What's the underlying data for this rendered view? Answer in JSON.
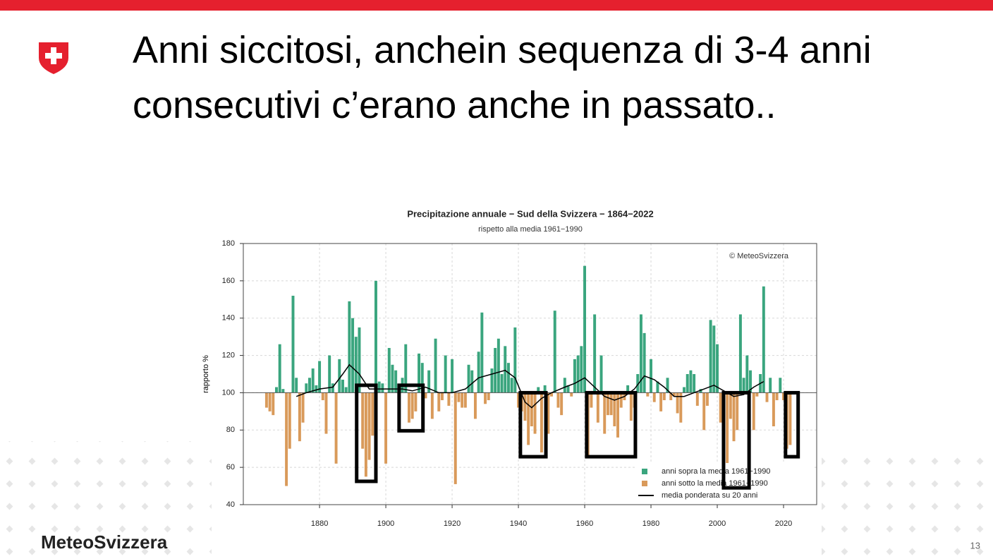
{
  "slide": {
    "title": "Anni siccitosi, anchein sequenza di 3-4 anni consecutivi c’erano anche in passato..",
    "brand": "MeteoSvizzera",
    "page_number": "13"
  },
  "chart_data": {
    "type": "bar",
    "title": "Precipitazione annuale − Sud della Svizzera − 1864−2022",
    "subtitle": "rispetto alla media 1961−1990",
    "ylabel": "rapporto %",
    "annotation": "© MeteoSvizzera",
    "xlim": [
      1857,
      2030
    ],
    "xticks": [
      1880,
      1900,
      1920,
      1940,
      1960,
      1980,
      2000,
      2020
    ],
    "ylim": [
      40,
      180
    ],
    "yticks": [
      40,
      60,
      80,
      100,
      120,
      140,
      160,
      180
    ],
    "grid": true,
    "baseline": 100,
    "legend_position": "lower right",
    "legend": [
      {
        "name": "anni sopra la media 1961−1990",
        "color": "#3aa57e"
      },
      {
        "name": "anni sotto la media 1961−1990",
        "color": "#d99a5a"
      }
    ],
    "x": [
      1864,
      1865,
      1866,
      1867,
      1868,
      1869,
      1870,
      1871,
      1872,
      1873,
      1874,
      1875,
      1876,
      1877,
      1878,
      1879,
      1880,
      1881,
      1882,
      1883,
      1884,
      1885,
      1886,
      1887,
      1888,
      1889,
      1890,
      1891,
      1892,
      1893,
      1894,
      1895,
      1896,
      1897,
      1898,
      1899,
      1900,
      1901,
      1902,
      1903,
      1904,
      1905,
      1906,
      1907,
      1908,
      1909,
      1910,
      1911,
      1912,
      1913,
      1914,
      1915,
      1916,
      1917,
      1918,
      1919,
      1920,
      1921,
      1922,
      1923,
      1924,
      1925,
      1926,
      1927,
      1928,
      1929,
      1930,
      1931,
      1932,
      1933,
      1934,
      1935,
      1936,
      1937,
      1938,
      1939,
      1940,
      1941,
      1942,
      1943,
      1944,
      1945,
      1946,
      1947,
      1948,
      1949,
      1950,
      1951,
      1952,
      1953,
      1954,
      1955,
      1956,
      1957,
      1958,
      1959,
      1960,
      1961,
      1962,
      1963,
      1964,
      1965,
      1966,
      1967,
      1968,
      1969,
      1970,
      1971,
      1972,
      1973,
      1974,
      1975,
      1976,
      1977,
      1978,
      1979,
      1980,
      1981,
      1982,
      1983,
      1984,
      1985,
      1986,
      1987,
      1988,
      1989,
      1990,
      1991,
      1992,
      1993,
      1994,
      1995,
      1996,
      1997,
      1998,
      1999,
      2000,
      2001,
      2002,
      2003,
      2004,
      2005,
      2006,
      2007,
      2008,
      2009,
      2010,
      2011,
      2012,
      2013,
      2014,
      2015,
      2016,
      2017,
      2018,
      2019,
      2020,
      2021,
      2022
    ],
    "values": [
      92,
      90,
      88,
      103,
      126,
      102,
      50,
      70,
      152,
      108,
      74,
      84,
      105,
      108,
      113,
      104,
      117,
      96,
      78,
      120,
      105,
      62,
      118,
      107,
      103,
      149,
      140,
      130,
      135,
      70,
      55,
      64,
      77,
      160,
      106,
      105,
      62,
      124,
      115,
      112,
      97,
      108,
      126,
      84,
      86,
      90,
      121,
      116,
      97,
      112,
      86,
      129,
      90,
      96,
      120,
      93,
      118,
      51,
      95,
      92,
      92,
      115,
      112,
      86,
      122,
      143,
      94,
      96,
      113,
      124,
      129,
      110,
      125,
      116,
      108,
      135,
      92,
      90,
      85,
      72,
      82,
      78,
      103,
      68,
      104,
      78,
      98,
      144,
      92,
      88,
      108,
      104,
      98,
      118,
      120,
      125,
      168,
      66,
      92,
      142,
      84,
      120,
      78,
      88,
      88,
      82,
      76,
      92,
      96,
      104,
      85,
      92,
      110,
      142,
      132,
      98,
      118,
      95,
      106,
      90,
      96,
      108,
      96,
      98,
      89,
      84,
      103,
      110,
      112,
      110,
      93,
      102,
      80,
      93,
      139,
      136,
      126,
      84,
      78,
      62,
      86,
      74,
      80,
      142,
      108,
      120,
      112,
      80,
      98,
      110,
      157,
      95,
      108,
      82,
      96,
      108,
      96,
      70,
      72
    ],
    "smooth": {
      "name": "media ponderata su 20 anni",
      "color": "#000000",
      "x": [
        1873,
        1876,
        1880,
        1884,
        1887,
        1889,
        1892,
        1895,
        1900,
        1905,
        1908,
        1912,
        1916,
        1920,
        1924,
        1928,
        1932,
        1936,
        1939,
        1942,
        1944,
        1947,
        1950,
        1954,
        1957,
        1960,
        1963,
        1966,
        1969,
        1972,
        1975,
        1978,
        1981,
        1984,
        1987,
        1990,
        1993,
        1996,
        1999,
        2002,
        2005,
        2008,
        2011,
        2014
      ],
      "values": [
        98,
        100,
        102,
        103,
        110,
        115,
        110,
        102,
        102,
        102,
        101,
        103,
        100,
        100,
        102,
        108,
        110,
        112,
        108,
        95,
        92,
        97,
        100,
        103,
        105,
        108,
        103,
        98,
        96,
        98,
        102,
        109,
        107,
        103,
        98,
        98,
        100,
        102,
        104,
        101,
        98,
        99,
        103,
        106
      ]
    },
    "highlights": [
      {
        "x": [
          1891.2,
          1897
        ],
        "y": [
          52.5,
          104
        ]
      },
      {
        "x": [
          1904,
          1911.2
        ],
        "y": [
          79.6,
          104
        ]
      },
      {
        "x": [
          1940.6,
          1948.3
        ],
        "y": [
          65.7,
          100
        ]
      },
      {
        "x": [
          1960.6,
          1975.3
        ],
        "y": [
          65.7,
          100
        ]
      },
      {
        "x": [
          2001.9,
          2009.6
        ],
        "y": [
          49,
          100
        ]
      },
      {
        "x": [
          2020.6,
          2024.4
        ],
        "y": [
          65.7,
          100
        ]
      }
    ]
  }
}
